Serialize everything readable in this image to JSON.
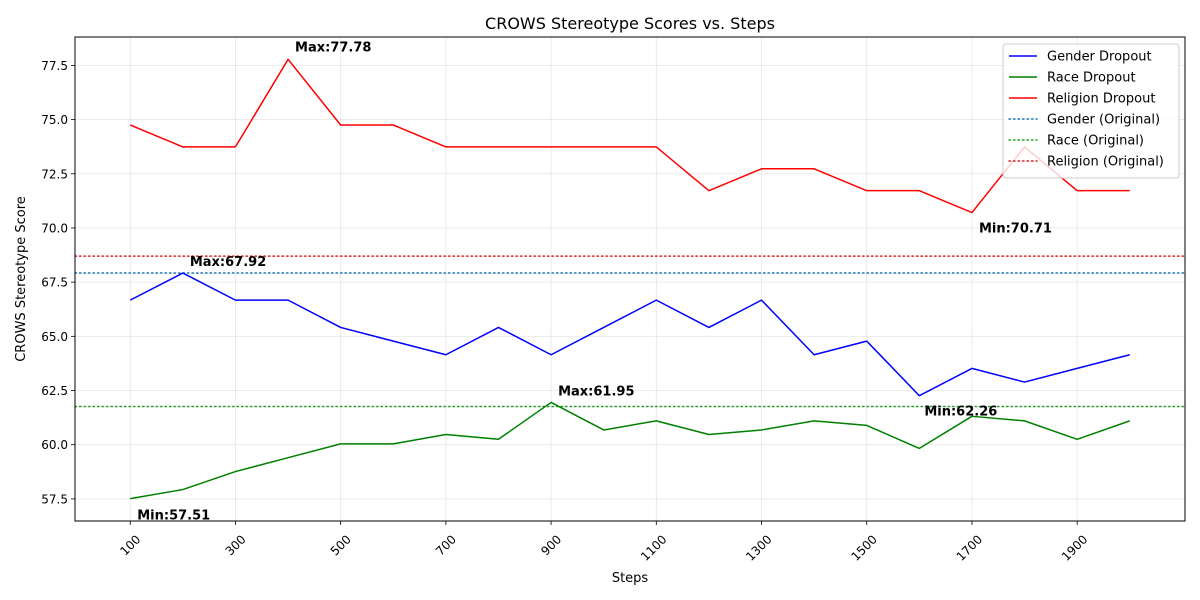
{
  "chart_data": {
    "type": "line",
    "title": "CROWS Stereotype Scores vs. Steps",
    "xlabel": "Steps",
    "ylabel": "CROWS Stereotype Score",
    "xlim": [
      -5,
      2105
    ],
    "ylim": [
      56.48,
      78.81
    ],
    "x_ticks": [
      100,
      300,
      500,
      700,
      900,
      1100,
      1300,
      1500,
      1700,
      1900
    ],
    "x_tick_labels": [
      "100",
      "300",
      "500",
      "700",
      "900",
      "1100",
      "1300",
      "1500",
      "1700",
      "1900"
    ],
    "y_ticks": [
      57.5,
      60.0,
      62.5,
      65.0,
      67.5,
      70.0,
      72.5,
      75.0,
      77.5
    ],
    "y_tick_labels": [
      "57.5",
      "60.0",
      "62.5",
      "65.0",
      "67.5",
      "70.0",
      "72.5",
      "75.0",
      "77.5"
    ],
    "grid": true,
    "legend_position": "top-right",
    "x": [
      100,
      200,
      300,
      400,
      500,
      600,
      700,
      800,
      900,
      1000,
      1100,
      1200,
      1300,
      1400,
      1500,
      1600,
      1700,
      1800,
      1900,
      2000
    ],
    "series": [
      {
        "name": "Gender Dropout",
        "color": "#0000ff",
        "style": "solid",
        "values": [
          66.67,
          67.92,
          66.67,
          66.67,
          65.41,
          64.78,
          64.15,
          65.41,
          64.15,
          65.41,
          66.67,
          65.41,
          66.67,
          64.15,
          64.78,
          62.26,
          63.52,
          62.89,
          63.52,
          64.15
        ]
      },
      {
        "name": "Race Dropout",
        "color": "#008000",
        "style": "solid",
        "values": [
          57.51,
          57.93,
          58.76,
          59.4,
          60.04,
          60.04,
          60.47,
          60.25,
          61.95,
          60.68,
          61.1,
          60.47,
          60.68,
          61.1,
          60.89,
          59.83,
          61.31,
          61.1,
          60.25,
          61.1
        ]
      },
      {
        "name": "Religion Dropout",
        "color": "#ff0000",
        "style": "solid",
        "values": [
          74.75,
          73.74,
          73.74,
          77.78,
          74.75,
          74.75,
          73.74,
          73.74,
          73.74,
          73.74,
          73.74,
          71.72,
          72.73,
          72.73,
          71.72,
          71.72,
          70.71,
          73.74,
          71.72,
          71.72
        ]
      }
    ],
    "reference_lines": [
      {
        "name": "Gender (Original)",
        "color": "#1f77b4",
        "style": "dotted",
        "value": 67.92
      },
      {
        "name": "Race (Original)",
        "color": "#2ca02c",
        "style": "dotted",
        "value": 61.76
      },
      {
        "name": "Religion (Original)",
        "color": "#d62728",
        "style": "dotted",
        "value": 68.7
      }
    ],
    "annotations": [
      {
        "text": "Max:77.78",
        "x": 400,
        "y": 77.78,
        "color": "#ff0000",
        "dx": 7,
        "dy": -8
      },
      {
        "text": "Min:70.71",
        "x": 1700,
        "y": 70.71,
        "color": "#ff0000",
        "dx": 7,
        "dy": 20
      },
      {
        "text": "Max:67.92",
        "x": 200,
        "y": 67.92,
        "color": "#0000cc",
        "dx": 7,
        "dy": -7
      },
      {
        "text": "Min:62.26",
        "x": 1600,
        "y": 62.26,
        "color": "#0000cc",
        "dx": 5,
        "dy": 20
      },
      {
        "text": "Max:61.95",
        "x": 900,
        "y": 61.95,
        "color": "#008000",
        "dx": 7,
        "dy": -7
      },
      {
        "text": "Min:57.51",
        "x": 100,
        "y": 57.51,
        "color": "#008000",
        "dx": 7,
        "dy": 21
      }
    ]
  }
}
